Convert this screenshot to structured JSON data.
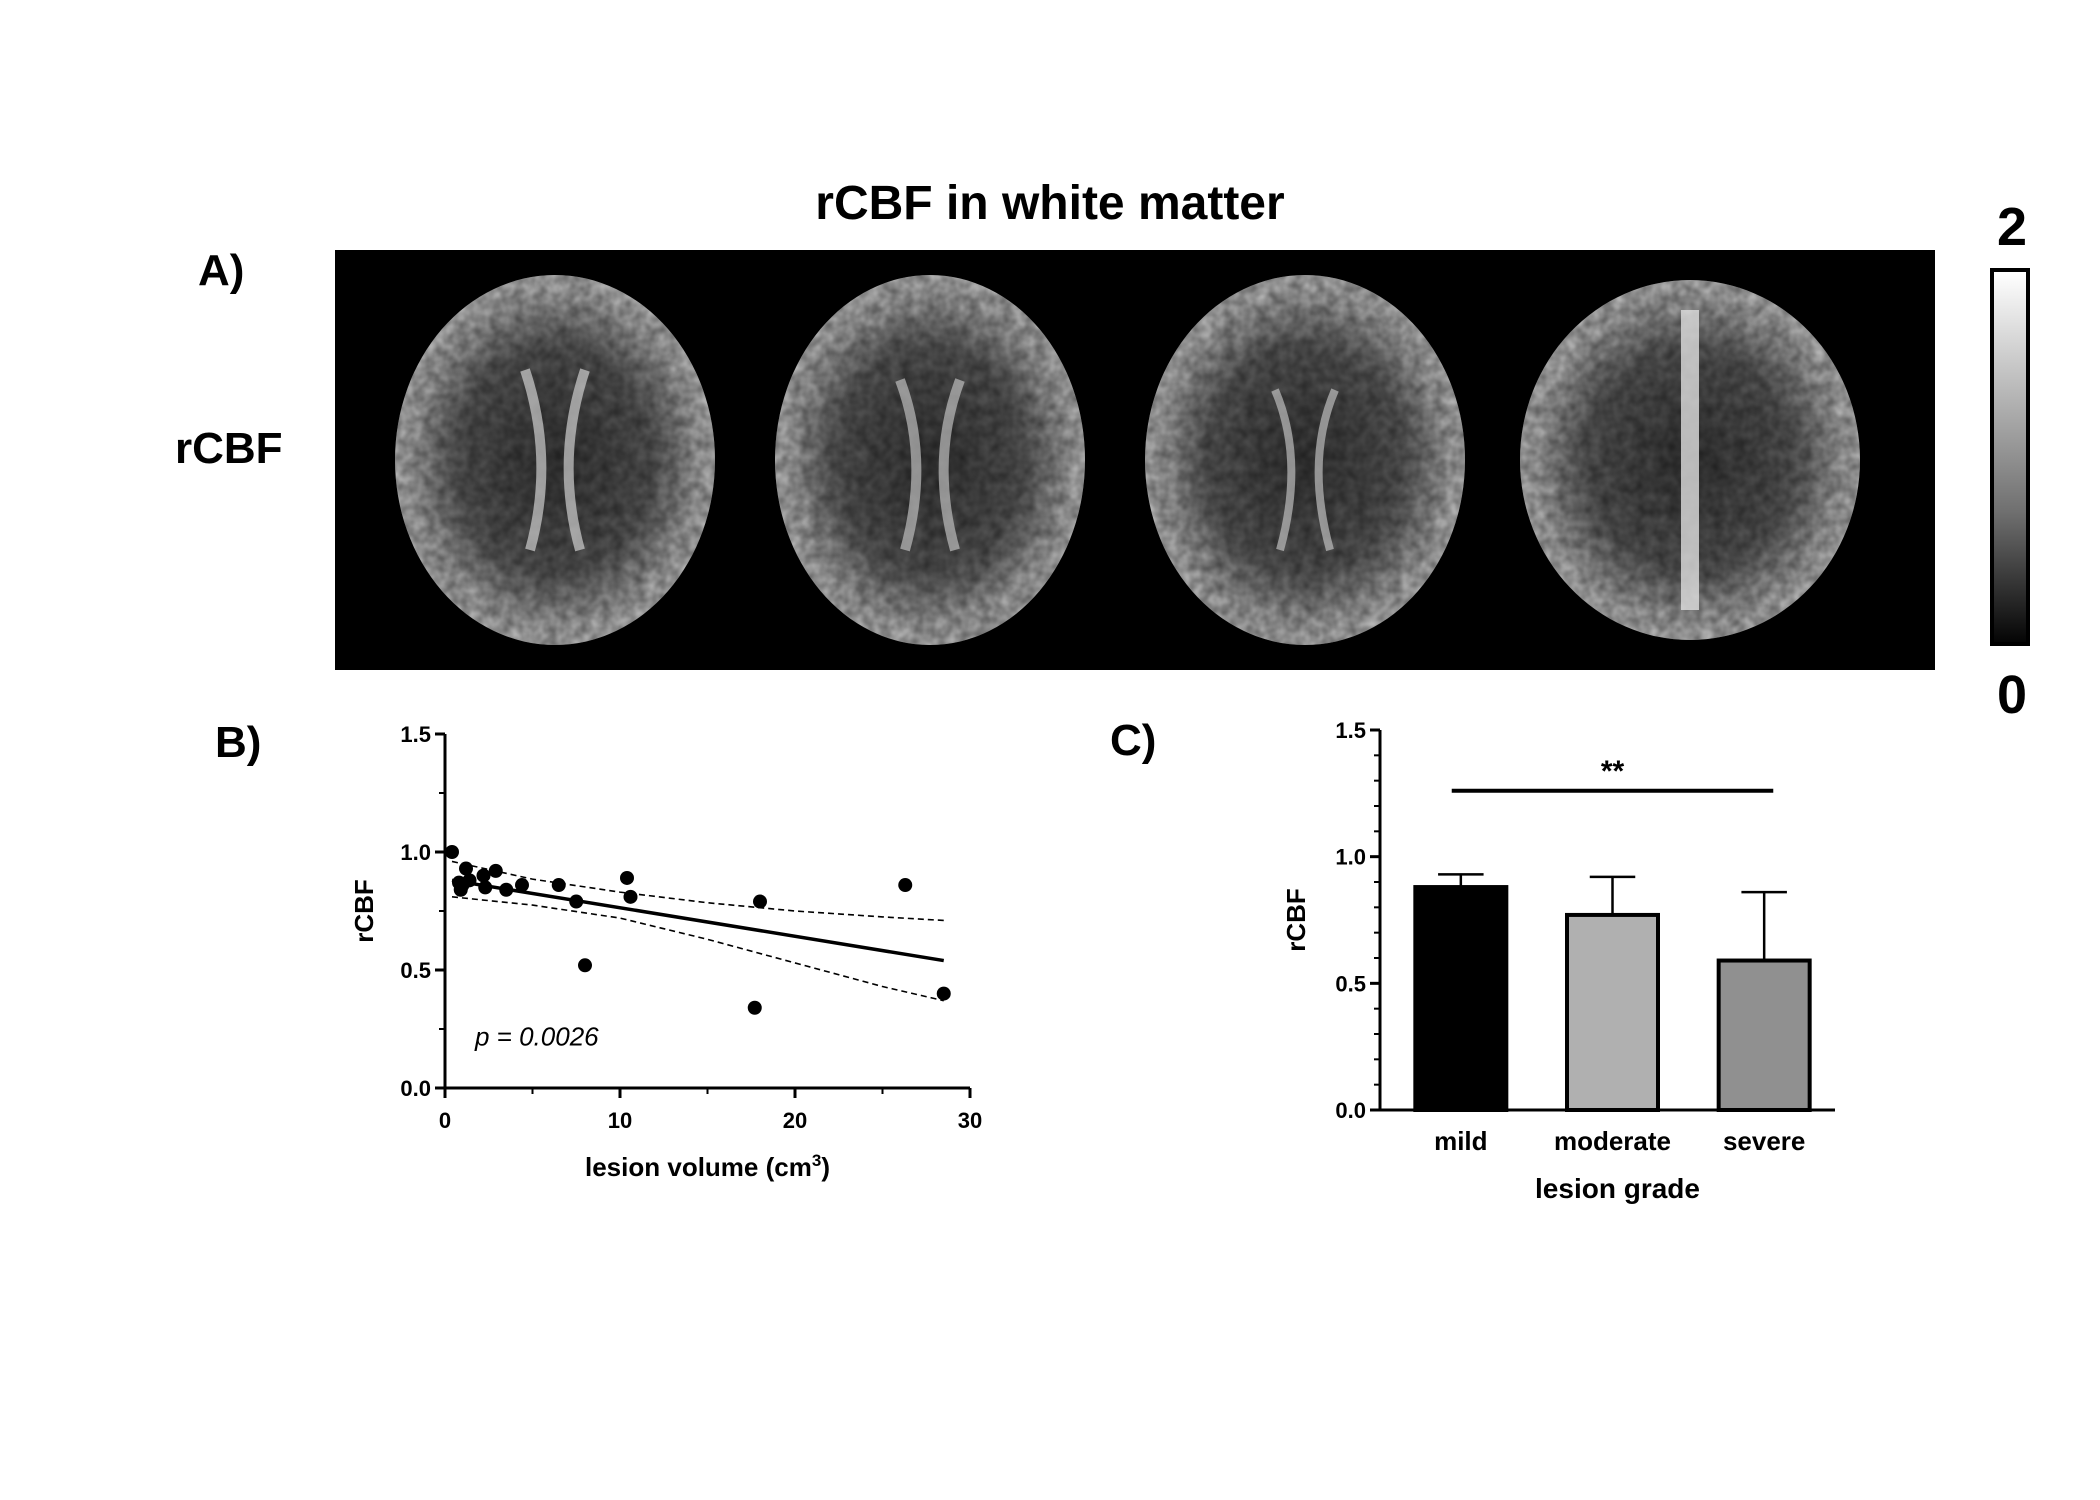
{
  "figure": {
    "title": "rCBF in white matter",
    "panel_a_label": "A)",
    "panel_b_label": "B)",
    "panel_c_label": "C)",
    "row_label": "rCBF",
    "colorbar": {
      "max_label": "2",
      "min_label": "0",
      "colormap": "grayscale"
    }
  },
  "chart_data": [
    {
      "type": "scatter",
      "panel": "B",
      "xlabel": "lesion volume (cm",
      "xlabel_superscript": "3",
      "xlabel_suffix": ")",
      "ylabel": "rCBF",
      "xlim": [
        0,
        30
      ],
      "ylim": [
        0.0,
        1.5
      ],
      "xticks": [
        "0",
        "10",
        "20",
        "30"
      ],
      "yticks": [
        "0.0",
        "0.5",
        "1.0",
        "1.5"
      ],
      "annotation": "p = 0.0026",
      "points": [
        {
          "x": 0.4,
          "y": 1.0
        },
        {
          "x": 0.8,
          "y": 0.87
        },
        {
          "x": 0.9,
          "y": 0.84
        },
        {
          "x": 1.0,
          "y": 0.86
        },
        {
          "x": 1.2,
          "y": 0.93
        },
        {
          "x": 1.4,
          "y": 0.88
        },
        {
          "x": 2.2,
          "y": 0.9
        },
        {
          "x": 2.3,
          "y": 0.85
        },
        {
          "x": 2.9,
          "y": 0.92
        },
        {
          "x": 3.5,
          "y": 0.84
        },
        {
          "x": 4.4,
          "y": 0.86
        },
        {
          "x": 6.5,
          "y": 0.86
        },
        {
          "x": 7.5,
          "y": 0.79
        },
        {
          "x": 8.0,
          "y": 0.52
        },
        {
          "x": 10.4,
          "y": 0.89
        },
        {
          "x": 10.6,
          "y": 0.81
        },
        {
          "x": 17.7,
          "y": 0.34
        },
        {
          "x": 18.0,
          "y": 0.79
        },
        {
          "x": 26.3,
          "y": 0.86
        },
        {
          "x": 28.5,
          "y": 0.4
        }
      ],
      "fit_line": [
        {
          "x": 0.4,
          "y": 0.88
        },
        {
          "x": 28.5,
          "y": 0.54
        }
      ],
      "ci_upper": [
        {
          "x": 0.4,
          "y": 0.96
        },
        {
          "x": 5,
          "y": 0.885
        },
        {
          "x": 10,
          "y": 0.83
        },
        {
          "x": 15,
          "y": 0.785
        },
        {
          "x": 20,
          "y": 0.75
        },
        {
          "x": 25,
          "y": 0.725
        },
        {
          "x": 28.5,
          "y": 0.71
        }
      ],
      "ci_lower": [
        {
          "x": 0.4,
          "y": 0.81
        },
        {
          "x": 5,
          "y": 0.775
        },
        {
          "x": 10,
          "y": 0.72
        },
        {
          "x": 15,
          "y": 0.63
        },
        {
          "x": 20,
          "y": 0.53
        },
        {
          "x": 25,
          "y": 0.43
        },
        {
          "x": 28.5,
          "y": 0.37
        }
      ]
    },
    {
      "type": "bar",
      "panel": "C",
      "xlabel": "lesion grade",
      "ylabel": "rCBF",
      "ylim": [
        0.0,
        1.5
      ],
      "yticks": [
        "0.0",
        "0.5",
        "1.0",
        "1.5"
      ],
      "categories": [
        "mild",
        "moderate",
        "severe"
      ],
      "values": [
        0.88,
        0.77,
        0.59
      ],
      "error_upper": [
        0.93,
        0.92,
        0.86
      ],
      "bar_colors": [
        "#000000",
        "#b0b0b0",
        "#909090"
      ],
      "significance": {
        "label": "**",
        "from": "mild",
        "to": "severe"
      }
    }
  ]
}
